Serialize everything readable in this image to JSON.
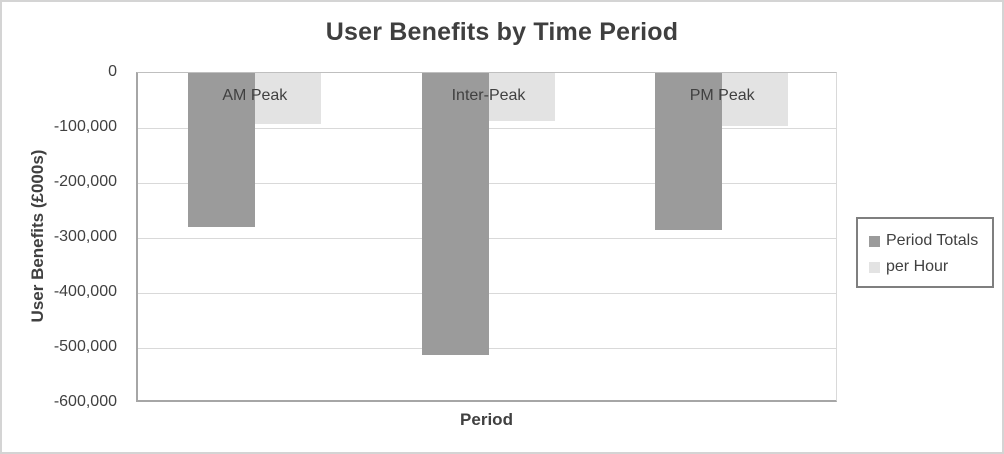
{
  "chart_data": {
    "type": "bar",
    "title": "User Benefits by Time Period",
    "xlabel": "Period",
    "ylabel": "User Benefits (£000s)",
    "categories": [
      "AM Peak",
      "Inter-Peak",
      "PM Peak"
    ],
    "series": [
      {
        "name": "Period Totals",
        "color": "#9b9b9b",
        "values": [
          -280000,
          -513000,
          -286000
        ]
      },
      {
        "name": "per Hour",
        "color": "#e3e3e3",
        "values": [
          -93000,
          -87000,
          -96000
        ]
      }
    ],
    "ylim": [
      -600000,
      0
    ],
    "yticks": [
      0,
      -100000,
      -200000,
      -300000,
      -400000,
      -500000,
      -600000
    ],
    "ytick_labels": [
      "0",
      "-100,000",
      "-200,000",
      "-300,000",
      "-400,000",
      "-500,000",
      "-600,000"
    ],
    "grid": true,
    "legend_position": "right"
  },
  "colors": {
    "frame_border": "#d4d4d4",
    "axis_line": "#a6a6a6",
    "gridline": "#d9d9d9",
    "text": "#404040",
    "title_text": "#3f3f3f",
    "legend_border": "#7f7f7f",
    "background": "#ffffff"
  }
}
